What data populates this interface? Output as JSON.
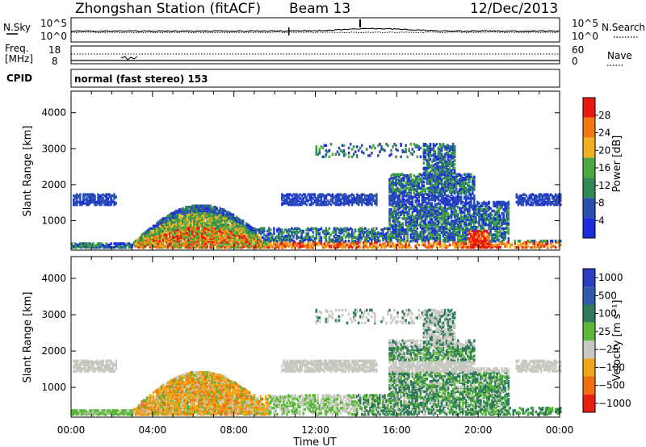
{
  "header": {
    "station": "Zhongshan Station (fitACF)",
    "beam": "Beam 13",
    "date": "12/Dec/2013"
  },
  "noise_panel": {
    "left_label": "N.Sky",
    "left_ticks": [
      "10^5",
      "10^0"
    ],
    "right_label": "N.Search",
    "right_ticks": [
      "10^5",
      "10^0"
    ]
  },
  "freq_panel": {
    "left_label_1": "Freq.",
    "left_label_2": "[MHz]",
    "left_ticks": [
      "18",
      "8"
    ],
    "right_label": "Nave",
    "right_ticks": [
      "60",
      "0"
    ]
  },
  "cpid": {
    "label": "CPID",
    "value": "normal (fast stereo) 153"
  },
  "colors": {
    "power_scale": [
      "#1c2de0",
      "#2c50b0",
      "#2f8a54",
      "#4aa840",
      "#f0b020",
      "#f07a10",
      "#e81a10"
    ],
    "velocity_scale": [
      "#2a3cc0",
      "#2f5aa8",
      "#2e7a5a",
      "#5ab838",
      "#c8c8c0",
      "#f0a818",
      "#f07010",
      "#e82010"
    ]
  },
  "chart_data": [
    {
      "type": "heatmap",
      "name": "power",
      "x_ticks": [
        "00:00",
        "04:00",
        "08:00",
        "12:00",
        "16:00",
        "20:00",
        "00:00"
      ],
      "y_ticks": [
        "1000",
        "2000",
        "3000",
        "4000"
      ],
      "ylabel": "Slant Range [km]",
      "ylim": [
        180,
        4600
      ],
      "colorbar_ticks": [
        "4",
        "8",
        "12",
        "16",
        "20",
        "24",
        "28"
      ],
      "colorbar_label": "Power [dB]",
      "colorbar_range": [
        0,
        32
      ]
    },
    {
      "type": "heatmap",
      "name": "velocity",
      "x_ticks": [
        "00:00",
        "04:00",
        "08:00",
        "12:00",
        "16:00",
        "20:00",
        "00:00"
      ],
      "y_ticks": [
        "1000",
        "2000",
        "3000",
        "4000"
      ],
      "ylabel": "Slant Range [km]",
      "xlabel": "Time UT",
      "ylim": [
        180,
        4600
      ],
      "colorbar_ticks": [
        "1000",
        "500",
        "100",
        "25",
        "−25",
        "−100",
        "−500",
        "−1000"
      ],
      "colorbar_label": "Velocity [m s⁻¹]"
    }
  ]
}
